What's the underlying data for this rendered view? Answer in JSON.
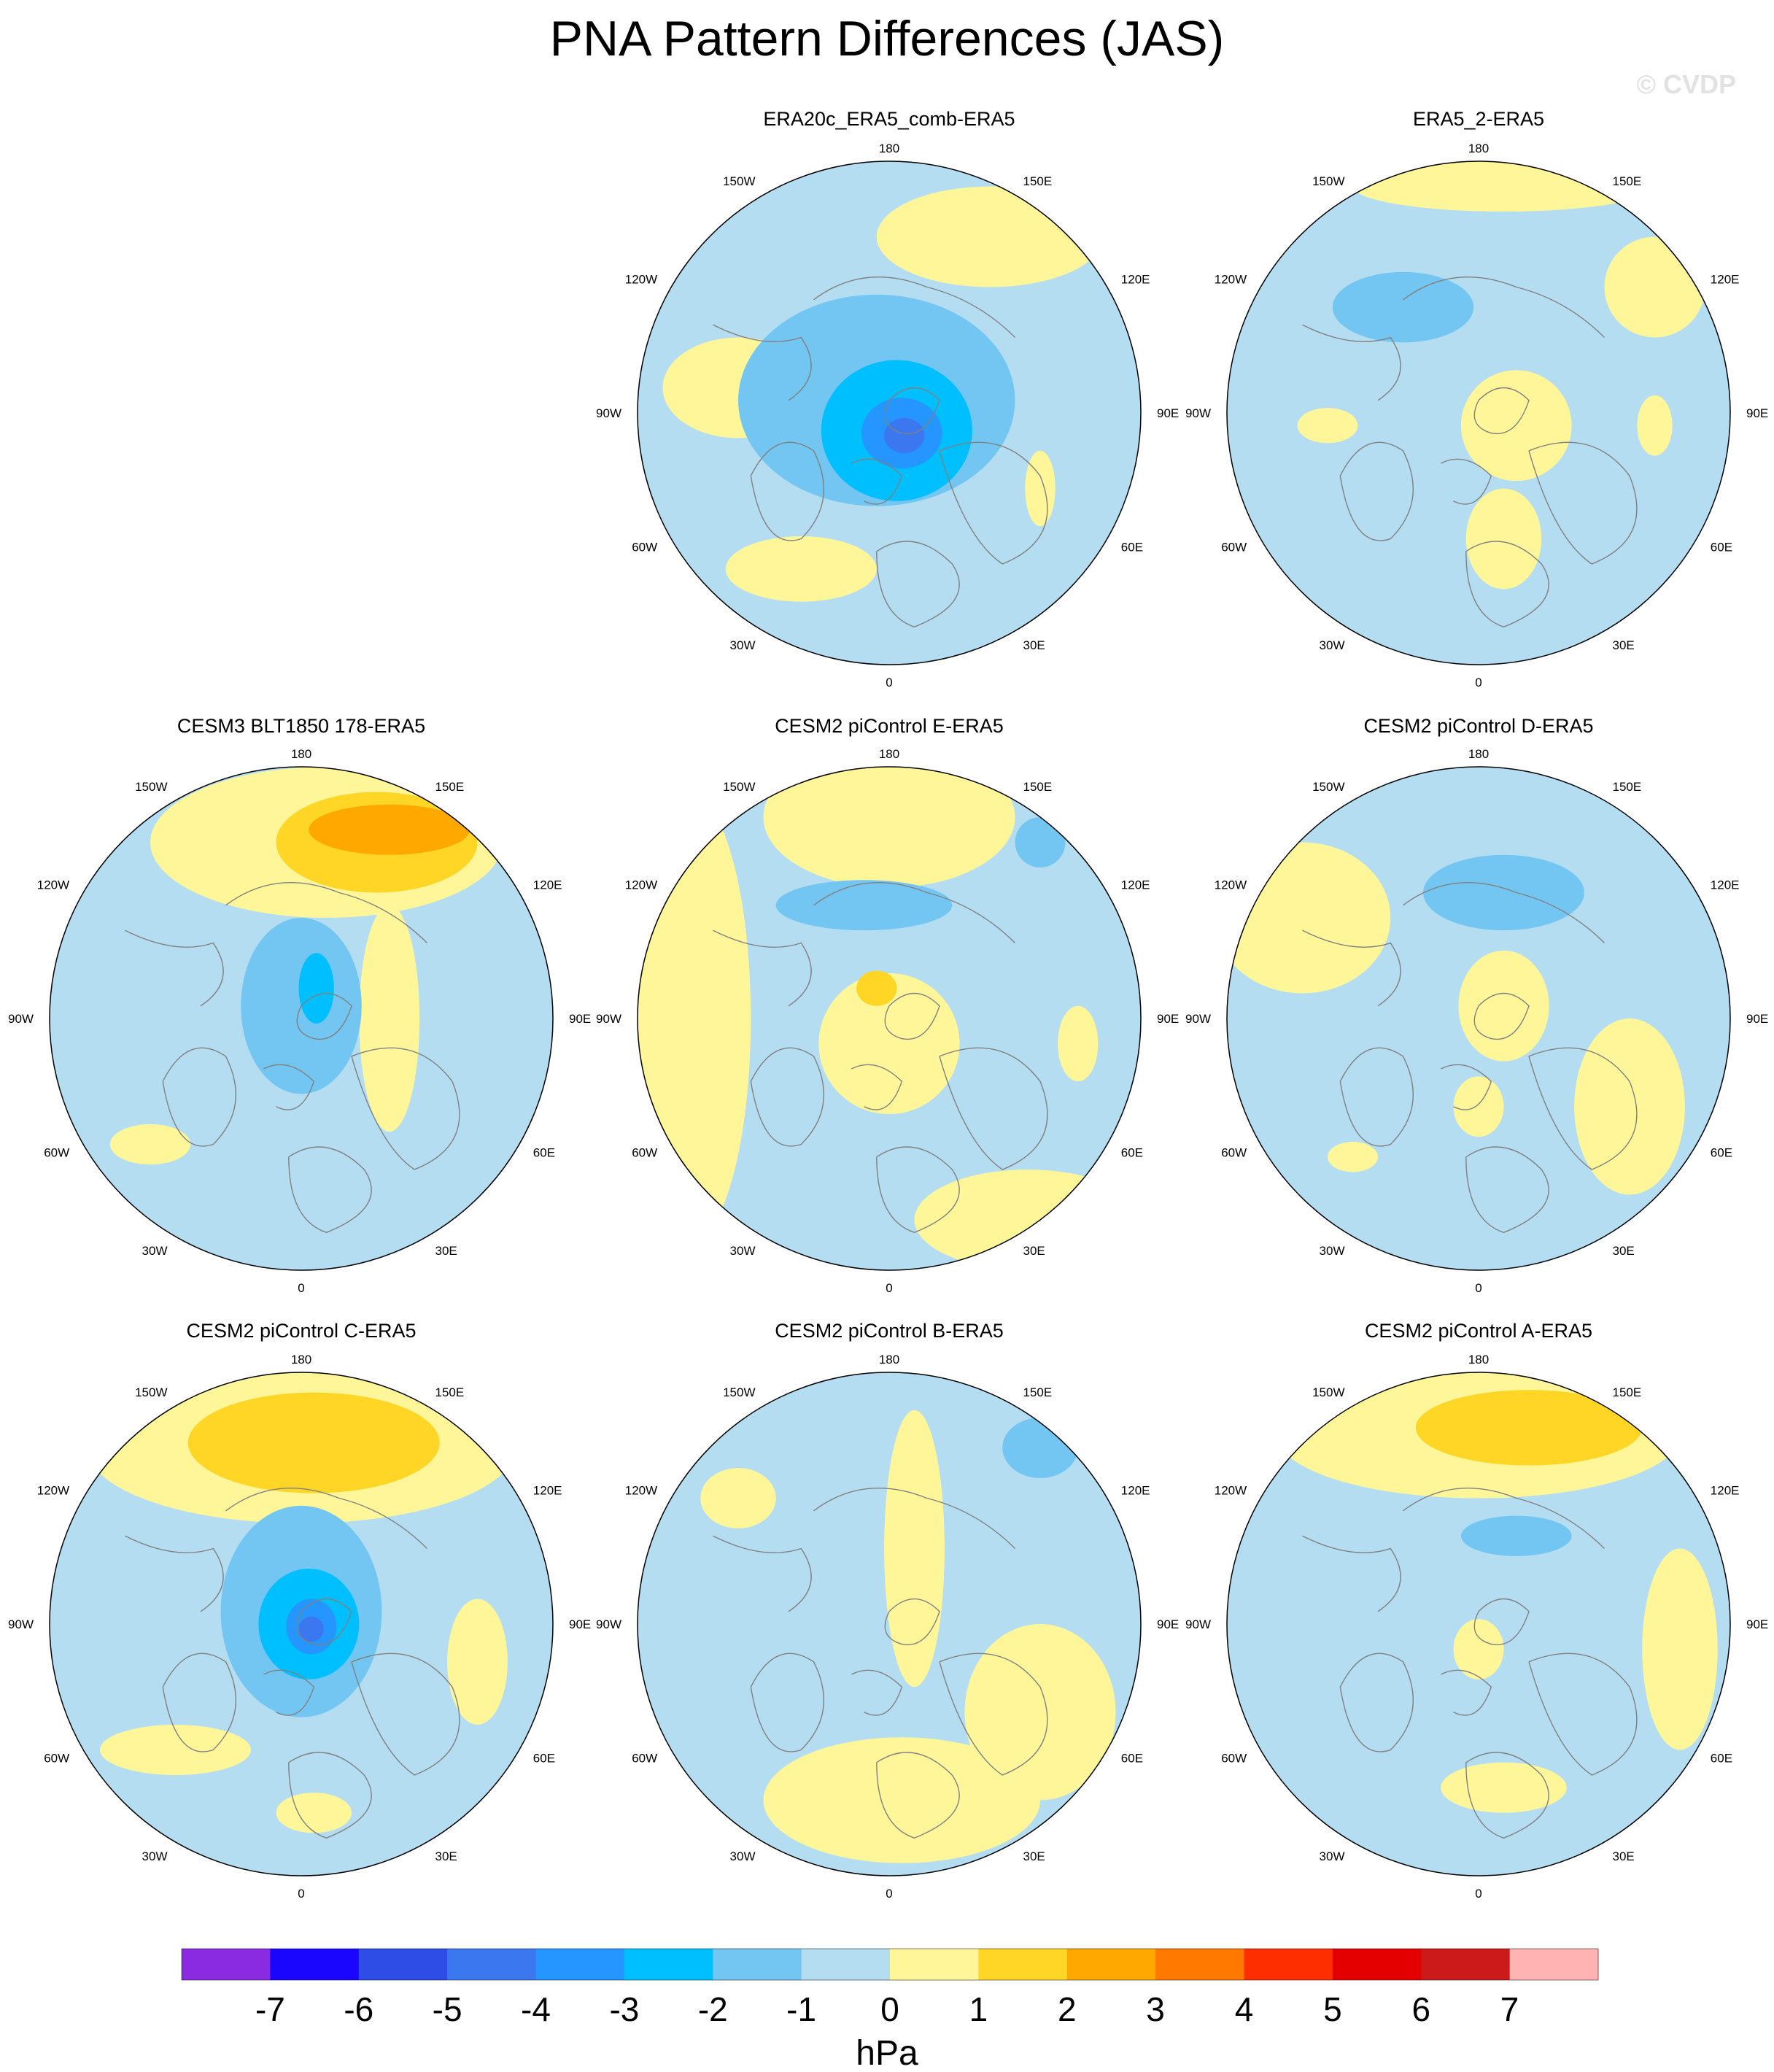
{
  "title": "PNA Pattern Differences (JAS)",
  "watermark": "© CVDP",
  "panels": [
    {
      "title": "ERA20c_ERA5_comb-ERA5",
      "row": 0,
      "col": 1,
      "blobs": [
        {
          "u": -0.05,
          "v": -0.05,
          "rx": 0.55,
          "ry": 0.42,
          "level": -1.5
        },
        {
          "u": 0.03,
          "v": 0.07,
          "rx": 0.3,
          "ry": 0.28,
          "level": -2.5
        },
        {
          "u": 0.05,
          "v": 0.08,
          "rx": 0.16,
          "ry": 0.14,
          "level": -3.5
        },
        {
          "u": 0.06,
          "v": 0.09,
          "rx": 0.08,
          "ry": 0.07,
          "level": -4.5
        },
        {
          "u": -0.6,
          "v": -0.1,
          "rx": 0.3,
          "ry": 0.2,
          "level": 0.5
        },
        {
          "u": -0.35,
          "v": 0.62,
          "rx": 0.3,
          "ry": 0.13,
          "level": 0.5
        },
        {
          "u": 0.4,
          "v": -0.7,
          "rx": 0.45,
          "ry": 0.2,
          "level": 0.5
        },
        {
          "u": 0.6,
          "v": 0.3,
          "rx": 0.06,
          "ry": 0.15,
          "level": 0.5
        }
      ],
      "labels": [
        "180",
        "150E",
        "120E",
        "90E",
        "60E",
        "30E",
        "0",
        "30W",
        "60W",
        "90W",
        "120W",
        "150W"
      ]
    },
    {
      "title": "ERA5_2-ERA5",
      "row": 0,
      "col": 2,
      "blobs": [
        {
          "u": -0.3,
          "v": -0.42,
          "rx": 0.28,
          "ry": 0.14,
          "level": -1.5
        },
        {
          "u": 0.15,
          "v": 0.05,
          "rx": 0.22,
          "ry": 0.22,
          "level": 0.5
        },
        {
          "u": 0.1,
          "v": 0.5,
          "rx": 0.15,
          "ry": 0.2,
          "level": 0.5
        },
        {
          "u": 0.7,
          "v": -0.5,
          "rx": 0.2,
          "ry": 0.2,
          "level": 0.5
        },
        {
          "u": 0.7,
          "v": 0.05,
          "rx": 0.07,
          "ry": 0.12,
          "level": 0.5
        },
        {
          "u": -0.6,
          "v": 0.05,
          "rx": 0.12,
          "ry": 0.07,
          "level": 0.5
        },
        {
          "u": 0.1,
          "v": -0.9,
          "rx": 0.6,
          "ry": 0.1,
          "level": 0.5
        }
      ],
      "labels": [
        "180",
        "150E",
        "120E",
        "90E",
        "60E",
        "30E",
        "0",
        "30W",
        "60W",
        "90W",
        "120W",
        "150W"
      ]
    },
    {
      "title": "CESM3 BLT1850 178-ERA5",
      "row": 1,
      "col": 0,
      "blobs": [
        {
          "u": 0.1,
          "v": -0.7,
          "rx": 0.7,
          "ry": 0.3,
          "level": 0.5
        },
        {
          "u": 0.3,
          "v": -0.7,
          "rx": 0.4,
          "ry": 0.2,
          "level": 1.5
        },
        {
          "u": 0.35,
          "v": -0.75,
          "rx": 0.32,
          "ry": 0.1,
          "level": 2.5
        },
        {
          "u": 0.0,
          "v": -0.05,
          "rx": 0.24,
          "ry": 0.35,
          "level": -1.5
        },
        {
          "u": 0.06,
          "v": -0.12,
          "rx": 0.07,
          "ry": 0.14,
          "level": -2.5
        },
        {
          "u": 0.35,
          "v": 0.0,
          "rx": 0.12,
          "ry": 0.45,
          "level": 0.5
        },
        {
          "u": -0.6,
          "v": 0.5,
          "rx": 0.16,
          "ry": 0.08,
          "level": 0.5
        }
      ],
      "labels": [
        "180",
        "150E",
        "120E",
        "90E",
        "60E",
        "30E",
        "0",
        "30W",
        "60W",
        "90W",
        "120W",
        "150W"
      ]
    },
    {
      "title": "CESM2 piControl E-ERA5",
      "row": 1,
      "col": 1,
      "blobs": [
        {
          "u": 0.0,
          "v": -0.8,
          "rx": 0.5,
          "ry": 0.28,
          "level": 0.5
        },
        {
          "u": -0.8,
          "v": 0.0,
          "rx": 0.25,
          "ry": 0.9,
          "level": 0.5
        },
        {
          "u": 0.0,
          "v": 0.1,
          "rx": 0.28,
          "ry": 0.28,
          "level": 0.5
        },
        {
          "u": 0.55,
          "v": 0.8,
          "rx": 0.45,
          "ry": 0.2,
          "level": 0.5
        },
        {
          "u": -0.1,
          "v": -0.45,
          "rx": 0.35,
          "ry": 0.1,
          "level": -1.5
        },
        {
          "u": 0.6,
          "v": -0.7,
          "rx": 0.1,
          "ry": 0.1,
          "level": -1.5
        },
        {
          "u": -0.05,
          "v": -0.12,
          "rx": 0.08,
          "ry": 0.07,
          "level": 1.5
        },
        {
          "u": 0.75,
          "v": 0.1,
          "rx": 0.08,
          "ry": 0.15,
          "level": 0.5
        }
      ],
      "labels": [
        "180",
        "150E",
        "120E",
        "90E",
        "60E",
        "30E",
        "0",
        "30W",
        "60W",
        "90W",
        "120W",
        "150W"
      ]
    },
    {
      "title": "CESM2 piControl D-ERA5",
      "row": 1,
      "col": 2,
      "blobs": [
        {
          "u": -0.7,
          "v": -0.4,
          "rx": 0.35,
          "ry": 0.3,
          "level": 0.5
        },
        {
          "u": 0.1,
          "v": -0.05,
          "rx": 0.18,
          "ry": 0.22,
          "level": 0.5
        },
        {
          "u": 0.0,
          "v": 0.35,
          "rx": 0.1,
          "ry": 0.12,
          "level": 0.5
        },
        {
          "u": 0.6,
          "v": 0.35,
          "rx": 0.22,
          "ry": 0.35,
          "level": 0.5
        },
        {
          "u": 0.1,
          "v": -0.5,
          "rx": 0.32,
          "ry": 0.15,
          "level": -1.5
        },
        {
          "u": -0.5,
          "v": 0.55,
          "rx": 0.1,
          "ry": 0.06,
          "level": 0.5
        }
      ],
      "labels": [
        "180",
        "150E",
        "120E",
        "90E",
        "60E",
        "30E",
        "0",
        "30W",
        "60W",
        "90W",
        "120W",
        "150W"
      ]
    },
    {
      "title": "CESM2 piControl C-ERA5",
      "row": 2,
      "col": 0,
      "blobs": [
        {
          "u": 0.0,
          "v": -0.7,
          "rx": 0.85,
          "ry": 0.3,
          "level": 0.5
        },
        {
          "u": 0.05,
          "v": -0.72,
          "rx": 0.5,
          "ry": 0.2,
          "level": 1.5
        },
        {
          "u": 0.0,
          "v": -0.05,
          "rx": 0.32,
          "ry": 0.42,
          "level": -1.5
        },
        {
          "u": 0.03,
          "v": 0.0,
          "rx": 0.2,
          "ry": 0.22,
          "level": -2.5
        },
        {
          "u": 0.04,
          "v": 0.01,
          "rx": 0.1,
          "ry": 0.11,
          "level": -3.5
        },
        {
          "u": 0.04,
          "v": 0.02,
          "rx": 0.05,
          "ry": 0.05,
          "level": -4.5
        },
        {
          "u": 0.7,
          "v": 0.15,
          "rx": 0.12,
          "ry": 0.25,
          "level": 0.5
        },
        {
          "u": -0.5,
          "v": 0.5,
          "rx": 0.3,
          "ry": 0.1,
          "level": 0.5
        },
        {
          "u": 0.05,
          "v": 0.75,
          "rx": 0.15,
          "ry": 0.08,
          "level": 0.5
        }
      ],
      "labels": [
        "180",
        "150E",
        "120E",
        "90E",
        "60E",
        "30E",
        "0",
        "30W",
        "60W",
        "90W",
        "120W",
        "150W"
      ]
    },
    {
      "title": "CESM2 piControl B-ERA5",
      "row": 2,
      "col": 1,
      "blobs": [
        {
          "u": 0.05,
          "v": 0.7,
          "rx": 0.55,
          "ry": 0.25,
          "level": 0.5
        },
        {
          "u": 0.1,
          "v": -0.3,
          "rx": 0.12,
          "ry": 0.55,
          "level": 0.5
        },
        {
          "u": 0.6,
          "v": 0.35,
          "rx": 0.3,
          "ry": 0.35,
          "level": 0.5
        },
        {
          "u": -0.6,
          "v": -0.5,
          "rx": 0.15,
          "ry": 0.12,
          "level": 0.5
        },
        {
          "u": 0.6,
          "v": -0.7,
          "rx": 0.15,
          "ry": 0.12,
          "level": -1.5
        }
      ],
      "labels": [
        "180",
        "150E",
        "120E",
        "90E",
        "60E",
        "30E",
        "0",
        "30W",
        "60W",
        "90W",
        "120W",
        "150W"
      ]
    },
    {
      "title": "CESM2 piControl A-ERA5",
      "row": 2,
      "col": 2,
      "blobs": [
        {
          "u": 0.0,
          "v": -0.75,
          "rx": 0.8,
          "ry": 0.25,
          "level": 0.5
        },
        {
          "u": 0.2,
          "v": -0.78,
          "rx": 0.45,
          "ry": 0.15,
          "level": 1.5
        },
        {
          "u": 0.8,
          "v": 0.1,
          "rx": 0.15,
          "ry": 0.4,
          "level": 0.5
        },
        {
          "u": 0.0,
          "v": 0.1,
          "rx": 0.1,
          "ry": 0.12,
          "level": 0.5
        },
        {
          "u": 0.1,
          "v": 0.65,
          "rx": 0.25,
          "ry": 0.1,
          "level": 0.5
        },
        {
          "u": 0.15,
          "v": -0.35,
          "rx": 0.22,
          "ry": 0.08,
          "level": -1.5
        }
      ],
      "labels": [
        "180",
        "150E",
        "120E",
        "90E",
        "60E",
        "30E",
        "0",
        "30W",
        "60W",
        "90W",
        "120W",
        "150W"
      ]
    }
  ],
  "colorbar": {
    "units": "hPa",
    "labels": [
      "-7",
      "-6",
      "-5",
      "-4",
      "-3",
      "-2",
      "-1",
      "0",
      "1",
      "2",
      "3",
      "4",
      "5",
      "6",
      "7"
    ],
    "colors": [
      "#8a2be2",
      "#1a05ff",
      "#2d4de6",
      "#3b78ef",
      "#2595ff",
      "#00bfff",
      "#73c6f2",
      "#b4ddf1",
      "#fff699",
      "#ffd626",
      "#ffa900",
      "#ff7800",
      "#ff2e00",
      "#e40000",
      "#cc1a1a",
      "#ffb3b3"
    ]
  }
}
